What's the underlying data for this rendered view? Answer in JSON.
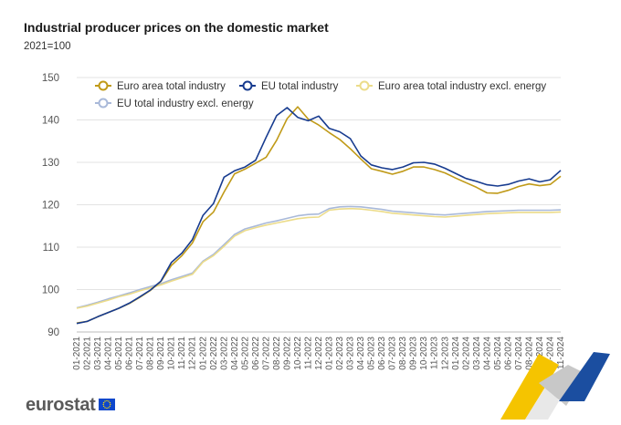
{
  "header": {
    "title": "Industrial producer prices on the domestic market",
    "subtitle": "2021=100"
  },
  "brand": {
    "name": "eurostat"
  },
  "colors": {
    "euro_area_total": "#c09a18",
    "eu_total": "#173b8f",
    "euro_area_excl": "#ecdc8a",
    "eu_excl": "#a9b9d9",
    "grid": "#e3e3e3",
    "axis_text": "#555555"
  },
  "chart_data": {
    "type": "line",
    "title": "Industrial producer prices on the domestic market",
    "subtitle": "2021=100",
    "xlabel": "",
    "ylabel": "",
    "ylim": [
      90,
      150
    ],
    "yticks": [
      90,
      100,
      110,
      120,
      130,
      140,
      150
    ],
    "grid": true,
    "legend_position": "top",
    "x": [
      "01-2021",
      "02-2021",
      "03-2021",
      "04-2021",
      "05-2021",
      "06-2021",
      "07-2021",
      "08-2021",
      "09-2021",
      "10-2021",
      "11-2021",
      "12-2021",
      "01-2022",
      "02-2022",
      "03-2022",
      "04-2022",
      "05-2022",
      "06-2022",
      "07-2022",
      "08-2022",
      "09-2022",
      "10-2022",
      "11-2022",
      "12-2022",
      "01-2023",
      "02-2023",
      "03-2023",
      "04-2023",
      "05-2023",
      "06-2023",
      "07-2023",
      "08-2023",
      "09-2023",
      "10-2023",
      "11-2023",
      "12-2023",
      "01-2024",
      "02-2024",
      "03-2024",
      "04-2024",
      "05-2024",
      "06-2024",
      "07-2024",
      "08-2024",
      "09-2024",
      "10-2024",
      "11-2024"
    ],
    "series": [
      {
        "name": "Euro area total industry",
        "color": "#c09a18",
        "values": [
          92.1,
          92.5,
          93.6,
          94.6,
          95.6,
          96.7,
          98.2,
          99.8,
          101.9,
          105.7,
          108.0,
          111.0,
          116.0,
          118.3,
          123.0,
          127.3,
          128.4,
          129.8,
          131.2,
          135.2,
          140.3,
          143.1,
          140.2,
          138.8,
          137.0,
          135.4,
          133.2,
          130.8,
          128.5,
          127.9,
          127.2,
          127.9,
          128.9,
          128.9,
          128.3,
          127.5,
          126.3,
          125.2,
          124.1,
          122.8,
          122.7,
          123.4,
          124.3,
          124.9,
          124.5,
          124.8,
          126.7
        ]
      },
      {
        "name": "EU total industry",
        "color": "#173b8f",
        "values": [
          92.0,
          92.5,
          93.6,
          94.6,
          95.6,
          96.8,
          98.3,
          99.9,
          102.0,
          106.4,
          108.6,
          111.8,
          117.5,
          120.3,
          126.5,
          128.0,
          128.9,
          130.5,
          135.9,
          141.0,
          142.9,
          140.6,
          139.8,
          140.9,
          138.0,
          137.2,
          135.6,
          131.5,
          129.4,
          128.7,
          128.3,
          128.9,
          129.9,
          130.0,
          129.6,
          128.6,
          127.4,
          126.2,
          125.5,
          124.7,
          124.4,
          124.8,
          125.6,
          126.1,
          125.4,
          125.9,
          128.1
        ]
      },
      {
        "name": "Euro area total industry excl. energy",
        "color": "#ecdc8a",
        "values": [
          95.6,
          96.1,
          96.8,
          97.5,
          98.3,
          98.9,
          99.7,
          100.4,
          101.1,
          102.0,
          102.8,
          103.6,
          106.5,
          108.0,
          110.2,
          112.6,
          113.9,
          114.6,
          115.2,
          115.7,
          116.2,
          116.7,
          117.0,
          117.1,
          118.7,
          119.0,
          119.1,
          119.0,
          118.7,
          118.4,
          118.0,
          117.8,
          117.6,
          117.4,
          117.2,
          117.1,
          117.3,
          117.5,
          117.7,
          117.9,
          118.0,
          118.1,
          118.2,
          118.2,
          118.2,
          118.2,
          118.3
        ]
      },
      {
        "name": "EU total industry excl. energy",
        "color": "#a9b9d9",
        "values": [
          95.7,
          96.3,
          97.0,
          97.8,
          98.5,
          99.2,
          100.0,
          100.7,
          101.4,
          102.3,
          103.1,
          103.9,
          106.7,
          108.3,
          110.6,
          113.0,
          114.3,
          115.0,
          115.7,
          116.2,
          116.8,
          117.4,
          117.7,
          117.8,
          119.1,
          119.5,
          119.6,
          119.5,
          119.2,
          118.9,
          118.5,
          118.3,
          118.1,
          117.9,
          117.7,
          117.6,
          117.8,
          118.0,
          118.2,
          118.4,
          118.5,
          118.6,
          118.7,
          118.7,
          118.7,
          118.7,
          118.8
        ]
      }
    ]
  }
}
